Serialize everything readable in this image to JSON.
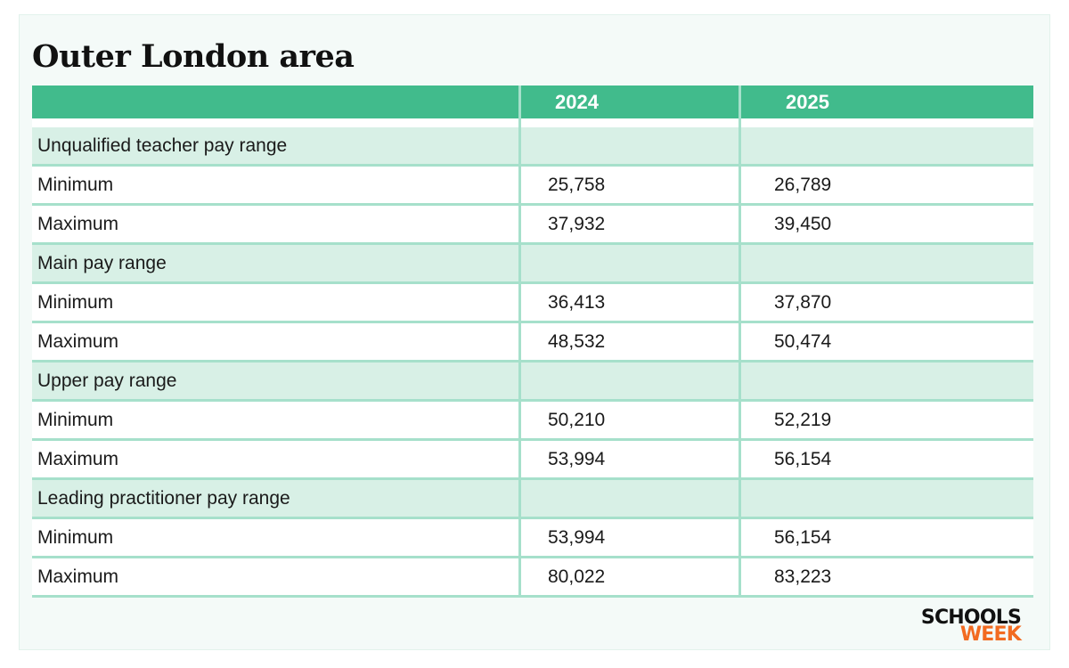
{
  "title": "Outer London area",
  "table": {
    "headers": [
      "",
      "2024",
      "2025"
    ],
    "rows": [
      {
        "type": "section",
        "label": "Unqualified teacher pay range",
        "v2024": "",
        "v2025": ""
      },
      {
        "type": "data",
        "label": "Minimum",
        "v2024": "25,758",
        "v2025": "26,789"
      },
      {
        "type": "data",
        "label": "Maximum",
        "v2024": "37,932",
        "v2025": "39,450"
      },
      {
        "type": "section",
        "label": "Main pay range",
        "v2024": "",
        "v2025": ""
      },
      {
        "type": "data",
        "label": "Minimum",
        "v2024": "36,413",
        "v2025": "37,870"
      },
      {
        "type": "data",
        "label": "Maximum",
        "v2024": "48,532",
        "v2025": "50,474"
      },
      {
        "type": "section",
        "label": "Upper pay range",
        "v2024": "",
        "v2025": ""
      },
      {
        "type": "data",
        "label": "Minimum",
        "v2024": "50,210",
        "v2025": "52,219"
      },
      {
        "type": "data",
        "label": "Maximum",
        "v2024": "53,994",
        "v2025": "56,154"
      },
      {
        "type": "section",
        "label": "Leading practitioner pay range",
        "v2024": "",
        "v2025": ""
      },
      {
        "type": "data",
        "label": "Minimum",
        "v2024": "53,994",
        "v2025": "56,154"
      },
      {
        "type": "data",
        "label": "Maximum",
        "v2024": "80,022",
        "v2025": "83,223"
      }
    ]
  },
  "logo": {
    "line1": "SCHOOLS",
    "line2": "WEEK"
  },
  "colors": {
    "header_bg": "#41bb8c",
    "section_bg": "#d8f0e6",
    "border": "#a6e0cb",
    "card_bg": "#f4faf8",
    "logo_accent": "#f26b21"
  }
}
